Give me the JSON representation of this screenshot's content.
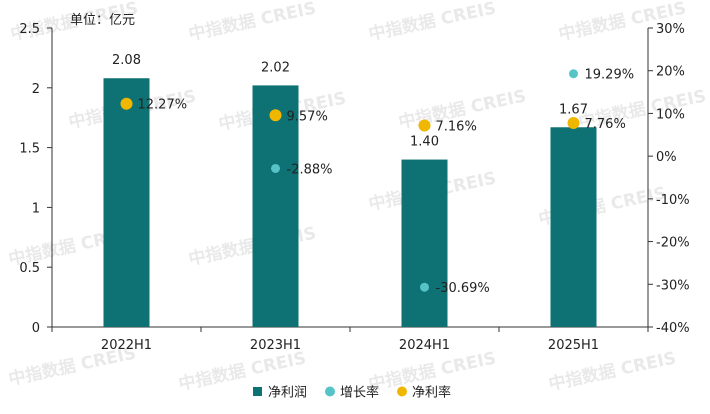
{
  "chart_data": {
    "type": "bar",
    "unit_label": "单位：亿元",
    "categories": [
      "2022H1",
      "2023H1",
      "2024H1",
      "2025H1"
    ],
    "series": [
      {
        "name": "净利润",
        "type": "bar",
        "axis": "left",
        "values": [
          2.08,
          2.02,
          1.4,
          1.67
        ],
        "labels": [
          "2.08",
          "2.02",
          "1.40",
          "1.67"
        ],
        "color": "#0e7173"
      },
      {
        "name": "增长率",
        "type": "scatter",
        "axis": "right",
        "values": [
          null,
          -2.88,
          -30.69,
          19.29
        ],
        "labels": [
          "",
          "-2.88%",
          "-30.69%",
          "19.29%"
        ],
        "color": "#56c3c7"
      },
      {
        "name": "净利率",
        "type": "scatter",
        "axis": "right",
        "values": [
          12.27,
          9.57,
          7.16,
          7.76
        ],
        "labels": [
          "12.27%",
          "9.57%",
          "7.16%",
          "7.76%"
        ],
        "color": "#f0b700"
      }
    ],
    "y_left": {
      "min": 0,
      "max": 2.5,
      "ticks": [
        "0",
        "0.5",
        "1",
        "1.5",
        "2",
        "2.5"
      ]
    },
    "y_right": {
      "min": -40,
      "max": 30,
      "ticks": [
        "-40%",
        "-30%",
        "-20%",
        "-10%",
        "0%",
        "10%",
        "20%",
        "30%"
      ]
    },
    "legend_position": "bottom-center",
    "grid": false
  },
  "watermark": "中指数据 CREIS"
}
